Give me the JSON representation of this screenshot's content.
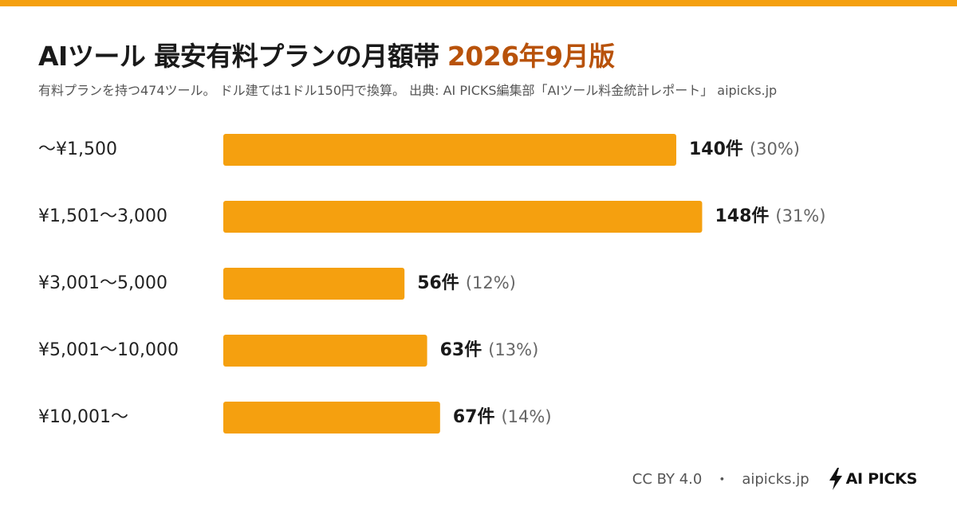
{
  "colors": {
    "accent": "#F5A00F",
    "title_accent": "#B8520A",
    "text": "#1a1a1a",
    "muted": "#666666"
  },
  "header": {
    "title": "AIツール 最安有料プランの月額帯",
    "title_accent": "2026年9月版",
    "subtitle": "有料プランを持つ474ツール。 ドル建ては1ドル150円で換算。 出典: AI PICKS編集部「AIツール料金統計レポート」 aipicks.jp"
  },
  "chart_data": {
    "type": "bar",
    "orientation": "horizontal",
    "categories": [
      "〜¥1,500",
      "¥1,501〜3,000",
      "¥3,001〜5,000",
      "¥5,001〜10,000",
      "¥10,001〜"
    ],
    "values": [
      140,
      148,
      56,
      63,
      67
    ],
    "value_labels": [
      "140件",
      "148件",
      "56件",
      "63件",
      "67件"
    ],
    "percent_labels": [
      "(30%)",
      "(31%)",
      "(12%)",
      "(13%)",
      "(14%)"
    ],
    "grid": false,
    "legend": "none"
  },
  "footer": {
    "license": "CC BY 4.0",
    "separator": "・",
    "site": "aipicks.jp",
    "brand_icon": "lightning-bolt-icon",
    "brand_name": "AI PICKS"
  }
}
